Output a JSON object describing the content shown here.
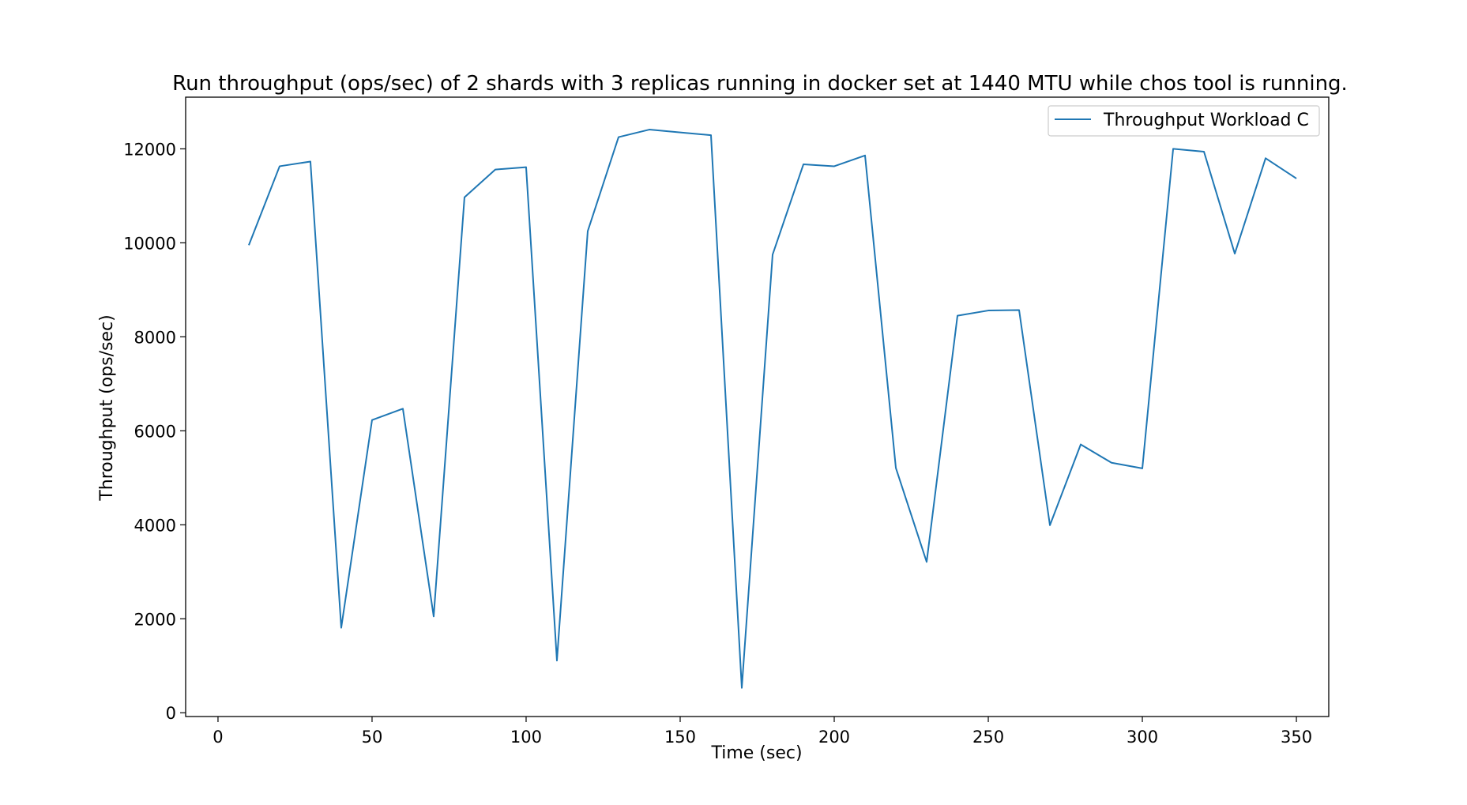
{
  "chart_data": {
    "type": "line",
    "title": "Run throughput (ops/sec) of 2 shards with 3 replicas running in docker set at 1440 MTU while chos tool is running.",
    "xlabel": "Time (sec)",
    "ylabel": "Throughput (ops/sec)",
    "xlim": [
      -10.5,
      360.5
    ],
    "ylim": [
      -80,
      13100
    ],
    "xticks": [
      0,
      50,
      100,
      150,
      200,
      250,
      300,
      350
    ],
    "yticks": [
      0,
      2000,
      4000,
      6000,
      8000,
      10000,
      12000
    ],
    "grid": false,
    "legend_position": "top-right",
    "series": [
      {
        "name": "Throughput Workload C",
        "color": "#1f77b4",
        "x": [
          10,
          20,
          30,
          40,
          50,
          60,
          70,
          80,
          90,
          100,
          110,
          120,
          130,
          140,
          150,
          160,
          170,
          180,
          190,
          200,
          210,
          220,
          230,
          240,
          250,
          260,
          270,
          280,
          290,
          300,
          310,
          320,
          330,
          340,
          350
        ],
        "y": [
          9950,
          11630,
          11730,
          1810,
          6230,
          6470,
          2050,
          10970,
          11560,
          11610,
          1110,
          10250,
          12250,
          12410,
          12350,
          12290,
          530,
          9750,
          11670,
          11630,
          11860,
          5210,
          3210,
          8450,
          8560,
          8570,
          3990,
          5710,
          5320,
          5200,
          12000,
          11940,
          9770,
          11800,
          11370
        ]
      }
    ]
  }
}
